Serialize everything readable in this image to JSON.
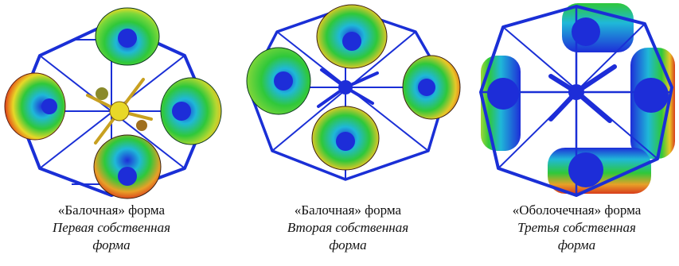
{
  "figure": {
    "panels": [
      {
        "render_icon": "first-mode-shape-render",
        "title": "«Балочная» форма",
        "subtitle_line1": "Первая собственная",
        "subtitle_line2": "форма"
      },
      {
        "render_icon": "second-mode-shape-render",
        "title": "«Балочная» форма",
        "subtitle_line1": "Вторая собственная",
        "subtitle_line2": "форма"
      },
      {
        "render_icon": "third-mode-shape-render",
        "title": "«Оболочечная» форма",
        "subtitle_line1": "Третья собственная",
        "subtitle_line2": "форма"
      }
    ],
    "colors": {
      "frame": "#1a2fd6",
      "deep_blue": "#1d2dd8",
      "cyan": "#1fb8d8",
      "green": "#2fc83a",
      "yellow": "#e8d828",
      "orange": "#e8781c",
      "red": "#d83c1c"
    }
  }
}
